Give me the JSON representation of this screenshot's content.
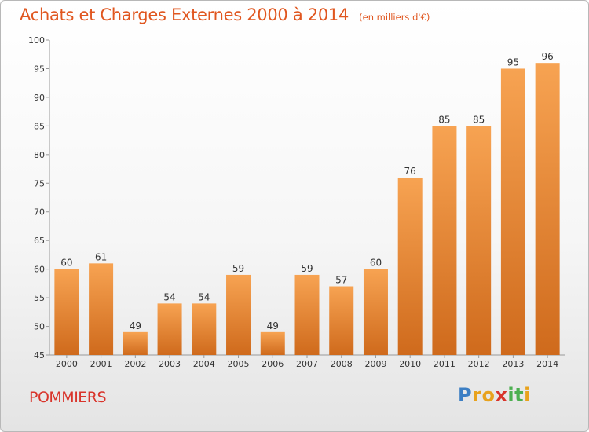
{
  "chart_data": {
    "type": "bar",
    "title": "Achats et Charges Externes 2000 à 2014",
    "subtitle": "(en milliers d'€)",
    "categories": [
      "2000",
      "2001",
      "2002",
      "2003",
      "2004",
      "2005",
      "2006",
      "2007",
      "2008",
      "2009",
      "2010",
      "2011",
      "2012",
      "2013",
      "2014"
    ],
    "values": [
      60,
      61,
      49,
      54,
      54,
      59,
      49,
      59,
      57,
      60,
      76,
      85,
      85,
      95,
      96
    ],
    "ylim": [
      45,
      100
    ],
    "yticks": [
      45,
      50,
      55,
      60,
      65,
      70,
      75,
      80,
      85,
      90,
      95,
      100
    ],
    "xlabel": "",
    "ylabel": "",
    "grid": false,
    "bar_color_light": "#f7a352",
    "bar_color_dark": "#cf6a1c",
    "title_color": "#e0561f"
  },
  "footer": {
    "commune": "POMMIERS",
    "brand_letters": [
      {
        "ch": "P",
        "color": "#3d7fc4"
      },
      {
        "ch": "r",
        "color": "#e8a21d"
      },
      {
        "ch": "o",
        "color": "#e8a21d"
      },
      {
        "ch": "x",
        "color": "#d9342b"
      },
      {
        "ch": "i",
        "color": "#4caf50"
      },
      {
        "ch": "t",
        "color": "#4caf50"
      },
      {
        "ch": "i",
        "color": "#e8a21d"
      }
    ]
  }
}
